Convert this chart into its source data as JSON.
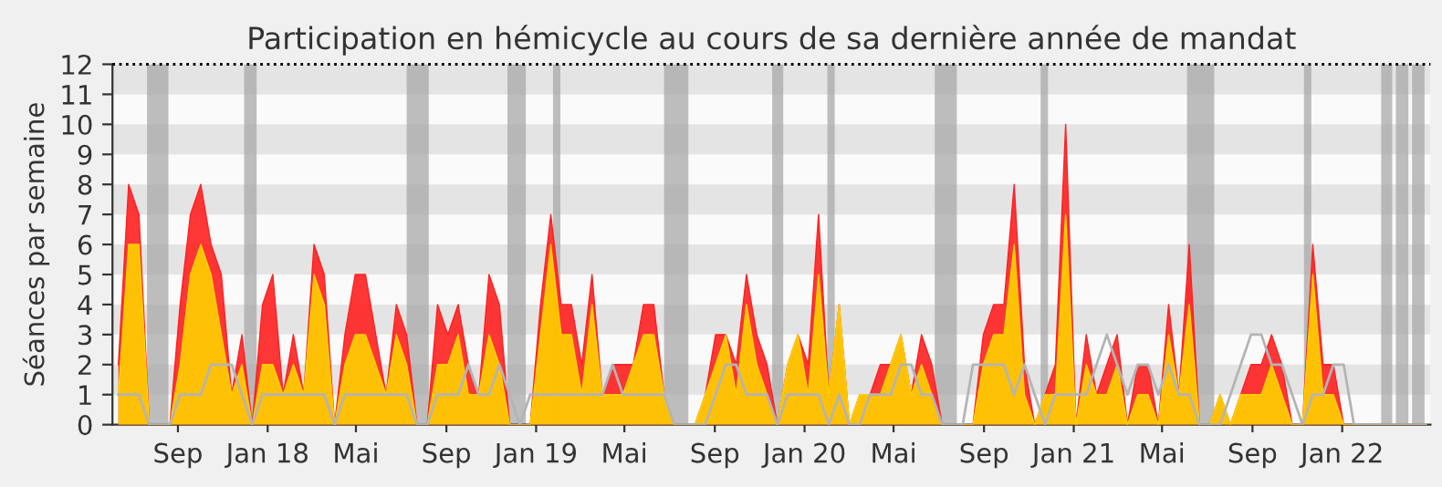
{
  "chart_data": {
    "type": "area",
    "title": "Participation en hémicycle au cours de sa dernière année de mandat",
    "ylabel": "Séances par semaine",
    "x": [
      "2017-06-12",
      "2017-06-26",
      "2017-07-10",
      "2017-07-24",
      "2017-08-07",
      "2017-08-21",
      "2017-09-04",
      "2017-09-18",
      "2017-10-02",
      "2017-10-16",
      "2017-10-30",
      "2017-11-13",
      "2017-11-27",
      "2017-12-11",
      "2017-12-25",
      "2018-01-08",
      "2018-01-22",
      "2018-02-05",
      "2018-02-19",
      "2018-03-05",
      "2018-03-19",
      "2018-04-02",
      "2018-04-16",
      "2018-04-30",
      "2018-05-14",
      "2018-05-28",
      "2018-06-11",
      "2018-06-25",
      "2018-07-09",
      "2018-07-23",
      "2018-08-06",
      "2018-08-20",
      "2018-09-03",
      "2018-09-17",
      "2018-10-01",
      "2018-10-15",
      "2018-10-29",
      "2018-11-12",
      "2018-11-26",
      "2018-12-10",
      "2018-12-24",
      "2019-01-07",
      "2019-01-21",
      "2019-02-04",
      "2019-02-18",
      "2019-03-04",
      "2019-03-18",
      "2019-04-01",
      "2019-04-15",
      "2019-04-29",
      "2019-05-13",
      "2019-05-27",
      "2019-06-10",
      "2019-06-24",
      "2019-07-08",
      "2019-07-22",
      "2019-08-05",
      "2019-08-19",
      "2019-09-02",
      "2019-09-16",
      "2019-09-30",
      "2019-10-14",
      "2019-10-28",
      "2019-11-11",
      "2019-11-25",
      "2019-12-09",
      "2019-12-23",
      "2020-01-06",
      "2020-01-20",
      "2020-02-03",
      "2020-02-17",
      "2020-03-02",
      "2020-03-16",
      "2020-03-30",
      "2020-04-13",
      "2020-04-27",
      "2020-05-11",
      "2020-05-25",
      "2020-06-08",
      "2020-06-22",
      "2020-07-06",
      "2020-07-20",
      "2020-08-03",
      "2020-08-17",
      "2020-08-31",
      "2020-09-14",
      "2020-09-28",
      "2020-10-12",
      "2020-10-26",
      "2020-11-09",
      "2020-11-23",
      "2020-12-07",
      "2020-12-21",
      "2021-01-04",
      "2021-01-18",
      "2021-02-01",
      "2021-02-15",
      "2021-03-01",
      "2021-03-15",
      "2021-03-29",
      "2021-04-12",
      "2021-04-26",
      "2021-05-10",
      "2021-05-24",
      "2021-06-07",
      "2021-06-21",
      "2021-07-05",
      "2021-07-19",
      "2021-08-02",
      "2021-08-16",
      "2021-08-30",
      "2021-09-13",
      "2021-09-27",
      "2021-10-11",
      "2021-10-25",
      "2021-11-08",
      "2021-11-22",
      "2021-12-06",
      "2021-12-20",
      "2022-01-03",
      "2022-01-17",
      "2022-01-31",
      "2022-02-14",
      "2022-02-28",
      "2022-03-14",
      "2022-03-28",
      "2022-04-11",
      "2022-04-25"
    ],
    "series": [
      {
        "color": "#ff2020",
        "values": [
          2,
          8,
          7,
          0,
          0,
          0,
          4,
          7,
          8,
          6,
          5,
          1,
          3,
          0,
          4,
          5,
          1,
          3,
          1,
          6,
          5,
          0,
          3,
          5,
          5,
          3,
          1,
          4,
          3,
          0,
          0,
          4,
          3,
          4,
          2,
          1,
          5,
          4,
          0,
          0,
          0,
          4,
          7,
          4,
          4,
          2,
          5,
          1,
          2,
          2,
          2,
          4,
          4,
          1,
          0,
          0,
          0,
          1,
          3,
          3,
          2,
          5,
          3,
          2,
          0,
          2,
          3,
          2,
          7,
          1,
          4,
          0,
          1,
          1,
          2,
          2,
          3,
          1,
          3,
          2,
          0,
          0,
          0,
          0,
          3,
          4,
          4,
          8,
          2,
          0,
          1,
          2,
          10,
          0,
          3,
          1,
          2,
          3,
          0,
          2,
          2,
          0,
          4,
          1,
          6,
          0,
          0,
          1,
          0,
          1,
          2,
          2,
          3,
          2,
          0,
          0,
          6,
          2,
          2,
          0,
          0,
          0,
          0,
          0,
          0,
          0,
          0,
          0
        ]
      },
      {
        "color": "#ffd000",
        "values": [
          1,
          6,
          6,
          0,
          0,
          0,
          2,
          5,
          6,
          5,
          3,
          1,
          2,
          0,
          2,
          2,
          1,
          2,
          1,
          5,
          4,
          0,
          2,
          3,
          3,
          2,
          1,
          3,
          2,
          0,
          0,
          2,
          2,
          3,
          1,
          1,
          3,
          2,
          0,
          0,
          0,
          3,
          6,
          3,
          3,
          1,
          4,
          1,
          1,
          1,
          2,
          3,
          3,
          1,
          0,
          0,
          0,
          1,
          2,
          3,
          1,
          4,
          2,
          1,
          0,
          2,
          3,
          1,
          5,
          1,
          4,
          0,
          1,
          1,
          1,
          2,
          3,
          1,
          2,
          1,
          0,
          0,
          0,
          0,
          2,
          3,
          3,
          6,
          1,
          0,
          1,
          1,
          7,
          0,
          2,
          1,
          1,
          2,
          0,
          1,
          1,
          0,
          3,
          1,
          4,
          0,
          0,
          1,
          0,
          1,
          1,
          1,
          2,
          1,
          0,
          0,
          5,
          1,
          1,
          0,
          0,
          0,
          0,
          0,
          0,
          0,
          0,
          0
        ]
      },
      {
        "type": "line",
        "color": "#b4b4b4",
        "values": [
          1,
          1,
          1,
          0,
          0,
          0,
          1,
          1,
          1,
          2,
          2,
          2,
          1,
          0,
          1,
          1,
          1,
          1,
          1,
          1,
          1,
          0,
          1,
          1,
          1,
          1,
          1,
          1,
          1,
          0,
          0,
          1,
          1,
          1,
          2,
          1,
          1,
          2,
          1,
          0,
          1,
          1,
          1,
          1,
          1,
          1,
          1,
          1,
          2,
          1,
          1,
          1,
          1,
          1,
          0,
          0,
          0,
          0,
          1,
          2,
          2,
          1,
          1,
          1,
          0,
          1,
          1,
          1,
          1,
          0,
          1,
          0,
          0,
          1,
          1,
          1,
          2,
          2,
          1,
          1,
          0,
          0,
          0,
          2,
          2,
          2,
          2,
          1,
          2,
          1,
          0,
          1,
          1,
          1,
          1,
          2,
          3,
          2,
          1,
          2,
          2,
          1,
          2,
          1,
          1,
          0,
          0,
          0,
          1,
          2,
          3,
          3,
          2,
          2,
          1,
          0,
          1,
          1,
          2,
          2,
          0,
          0,
          0,
          0,
          0,
          0,
          0,
          0
        ]
      }
    ],
    "xlim": [
      "2017-06-04",
      "2022-05-01"
    ],
    "xticks": [
      {
        "value": "2017-09-01",
        "label": "Sep"
      },
      {
        "value": "2018-01-01",
        "label": "Jan 18"
      },
      {
        "value": "2018-05-01",
        "label": "Mai"
      },
      {
        "value": "2018-09-01",
        "label": "Sep"
      },
      {
        "value": "2019-01-01",
        "label": "Jan 19"
      },
      {
        "value": "2019-05-01",
        "label": "Mai"
      },
      {
        "value": "2019-09-01",
        "label": "Sep"
      },
      {
        "value": "2020-01-01",
        "label": "Jan 20"
      },
      {
        "value": "2020-05-01",
        "label": "Mai"
      },
      {
        "value": "2020-09-01",
        "label": "Sep"
      },
      {
        "value": "2021-01-01",
        "label": "Jan 21"
      },
      {
        "value": "2021-05-01",
        "label": "Mai"
      },
      {
        "value": "2021-09-01",
        "label": "Sep"
      },
      {
        "value": "2022-01-01",
        "label": "Jan 22"
      }
    ],
    "ylim": [
      0,
      12
    ],
    "yticks": [
      0,
      1,
      2,
      3,
      4,
      5,
      6,
      7,
      8,
      9,
      10,
      11,
      12
    ],
    "ref_lines": [
      {
        "axis": "y",
        "value": 12,
        "color": "#000000",
        "line_style": "dotted"
      }
    ],
    "bands": [
      {
        "axis": "y",
        "from": 1,
        "to": 2,
        "color": "#e4e4e4"
      },
      {
        "axis": "y",
        "from": 3,
        "to": 4,
        "color": "#e4e4e4"
      },
      {
        "axis": "y",
        "from": 5,
        "to": 6,
        "color": "#e4e4e4"
      },
      {
        "axis": "y",
        "from": 7,
        "to": 8,
        "color": "#e4e4e4"
      },
      {
        "axis": "y",
        "from": 9,
        "to": 10,
        "color": "#e4e4e4"
      },
      {
        "axis": "y",
        "from": 11,
        "to": 12,
        "color": "#e4e4e4"
      },
      {
        "axis": "x",
        "from": "2017-07-21",
        "to": "2017-08-19",
        "color": "#a8a8a8"
      },
      {
        "axis": "x",
        "from": "2017-11-30",
        "to": "2017-12-17",
        "color": "#a8a8a8"
      },
      {
        "axis": "x",
        "from": "2018-07-09",
        "to": "2018-08-08",
        "color": "#a8a8a8"
      },
      {
        "axis": "x",
        "from": "2018-11-23",
        "to": "2018-12-18",
        "color": "#a8a8a8"
      },
      {
        "axis": "x",
        "from": "2019-01-24",
        "to": "2019-02-03",
        "color": "#a8a8a8"
      },
      {
        "axis": "x",
        "from": "2019-06-24",
        "to": "2019-07-27",
        "color": "#a8a8a8"
      },
      {
        "axis": "x",
        "from": "2019-11-18",
        "to": "2019-12-03",
        "color": "#a8a8a8"
      },
      {
        "axis": "x",
        "from": "2020-02-01",
        "to": "2020-02-11",
        "color": "#a8a8a8"
      },
      {
        "axis": "x",
        "from": "2020-06-26",
        "to": "2020-07-26",
        "color": "#a8a8a8"
      },
      {
        "axis": "x",
        "from": "2020-11-17",
        "to": "2020-11-27",
        "color": "#a8a8a8"
      },
      {
        "axis": "x",
        "from": "2021-06-04",
        "to": "2021-07-11",
        "color": "#a8a8a8"
      },
      {
        "axis": "x",
        "from": "2021-11-10",
        "to": "2021-11-20",
        "color": "#a8a8a8"
      },
      {
        "axis": "x",
        "from": "2022-02-23",
        "to": "2022-03-10",
        "color": "#a8a8a8"
      },
      {
        "axis": "x",
        "from": "2022-03-15",
        "to": "2022-04-01",
        "color": "#a8a8a8"
      },
      {
        "axis": "x",
        "from": "2022-04-06",
        "to": "2022-04-23",
        "color": "#a8a8a8"
      }
    ],
    "grid": false,
    "legend": false
  }
}
